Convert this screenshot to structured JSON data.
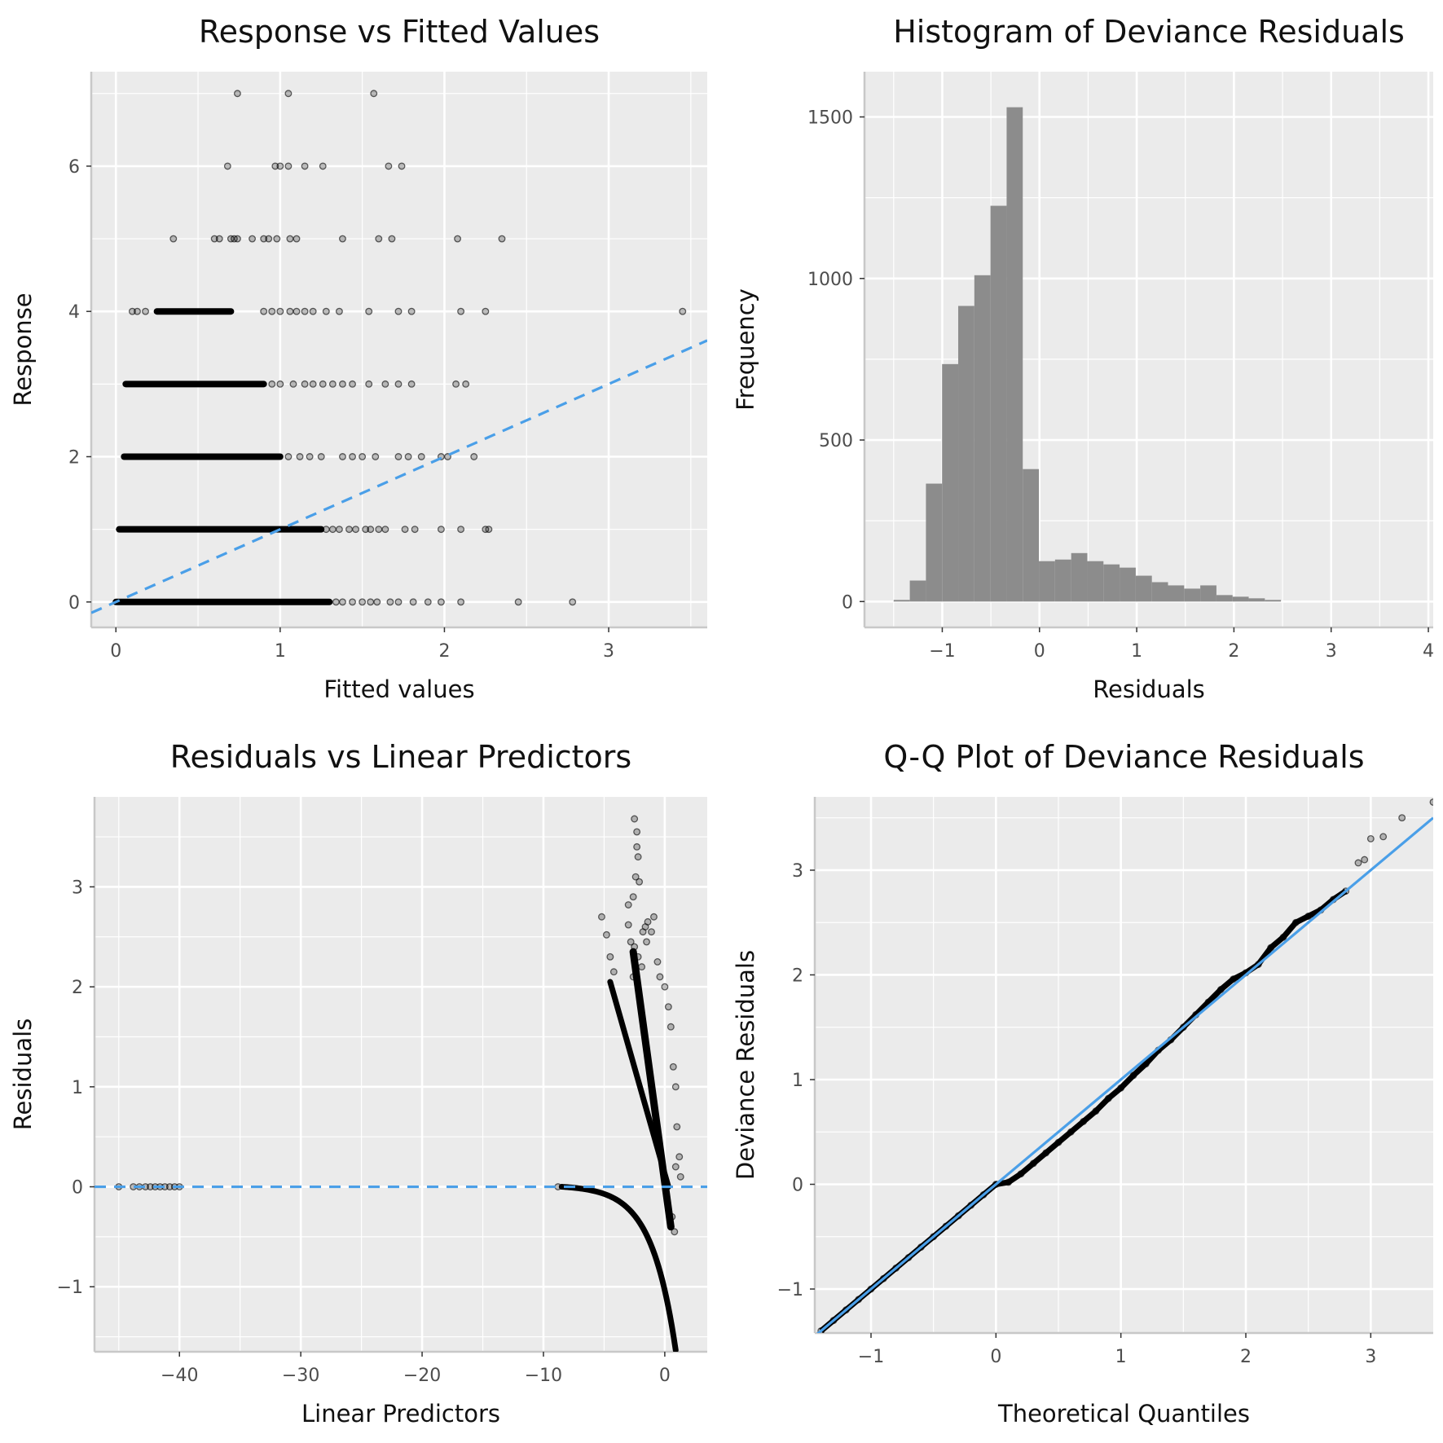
{
  "colors": {
    "panel_bg": "#ebebeb",
    "grid": "#ffffff",
    "axis": "#c8c8c8",
    "point": "#000000",
    "bar": "#8c8c8c",
    "ref_line": "#4a9fe8"
  },
  "chart_data": [
    {
      "type": "scatter",
      "title": "Response vs Fitted Values",
      "xlabel": "Fitted values",
      "ylabel": "Response",
      "xlim": [
        -0.15,
        3.6
      ],
      "ylim": [
        -0.35,
        7.3
      ],
      "xticks": [
        0,
        1,
        2,
        3
      ],
      "yticks": [
        0,
        2,
        4,
        6
      ],
      "grid": true,
      "reference_line": {
        "type": "identity",
        "style": "dashed"
      },
      "bands": [
        {
          "y": 0,
          "x_from": 0.0,
          "x_to": 1.3
        },
        {
          "y": 1,
          "x_from": 0.02,
          "x_to": 1.25
        },
        {
          "y": 2,
          "x_from": 0.05,
          "x_to": 1.0
        },
        {
          "y": 3,
          "x_from": 0.06,
          "x_to": 0.9
        },
        {
          "y": 4,
          "x_from": 0.25,
          "x_to": 0.7
        }
      ],
      "points": [
        [
          0.74,
          7
        ],
        [
          1.05,
          7
        ],
        [
          1.57,
          7
        ],
        [
          0.68,
          6
        ],
        [
          0.97,
          6
        ],
        [
          1.0,
          6
        ],
        [
          1.05,
          6
        ],
        [
          1.15,
          6
        ],
        [
          1.26,
          6
        ],
        [
          1.66,
          6
        ],
        [
          1.74,
          6
        ],
        [
          0.35,
          5
        ],
        [
          0.6,
          5
        ],
        [
          0.63,
          5
        ],
        [
          0.7,
          5
        ],
        [
          0.72,
          5
        ],
        [
          0.74,
          5
        ],
        [
          0.83,
          5
        ],
        [
          0.9,
          5
        ],
        [
          0.93,
          5
        ],
        [
          0.98,
          5
        ],
        [
          1.06,
          5
        ],
        [
          1.1,
          5
        ],
        [
          1.38,
          5
        ],
        [
          1.6,
          5
        ],
        [
          1.68,
          5
        ],
        [
          2.08,
          5
        ],
        [
          2.35,
          5
        ],
        [
          0.1,
          4
        ],
        [
          0.13,
          4
        ],
        [
          0.18,
          4
        ],
        [
          0.9,
          4
        ],
        [
          0.95,
          4
        ],
        [
          1.0,
          4
        ],
        [
          1.06,
          4
        ],
        [
          1.1,
          4
        ],
        [
          1.15,
          4
        ],
        [
          1.2,
          4
        ],
        [
          1.28,
          4
        ],
        [
          1.36,
          4
        ],
        [
          1.54,
          4
        ],
        [
          1.72,
          4
        ],
        [
          1.8,
          4
        ],
        [
          2.1,
          4
        ],
        [
          2.25,
          4
        ],
        [
          3.45,
          4
        ],
        [
          0.95,
          3
        ],
        [
          1.0,
          3
        ],
        [
          1.08,
          3
        ],
        [
          1.15,
          3
        ],
        [
          1.2,
          3
        ],
        [
          1.26,
          3
        ],
        [
          1.32,
          3
        ],
        [
          1.38,
          3
        ],
        [
          1.44,
          3
        ],
        [
          1.54,
          3
        ],
        [
          1.64,
          3
        ],
        [
          1.72,
          3
        ],
        [
          1.8,
          3
        ],
        [
          2.07,
          3
        ],
        [
          2.13,
          3
        ],
        [
          1.05,
          2
        ],
        [
          1.12,
          2
        ],
        [
          1.18,
          2
        ],
        [
          1.25,
          2
        ],
        [
          1.38,
          2
        ],
        [
          1.44,
          2
        ],
        [
          1.5,
          2
        ],
        [
          1.58,
          2
        ],
        [
          1.72,
          2
        ],
        [
          1.78,
          2
        ],
        [
          1.86,
          2
        ],
        [
          1.98,
          2
        ],
        [
          2.02,
          2
        ],
        [
          2.18,
          2
        ],
        [
          1.28,
          1
        ],
        [
          1.32,
          1
        ],
        [
          1.36,
          1
        ],
        [
          1.42,
          1
        ],
        [
          1.46,
          1
        ],
        [
          1.52,
          1
        ],
        [
          1.55,
          1
        ],
        [
          1.6,
          1
        ],
        [
          1.64,
          1
        ],
        [
          1.76,
          1
        ],
        [
          1.82,
          1
        ],
        [
          1.98,
          1
        ],
        [
          2.1,
          1
        ],
        [
          2.25,
          1
        ],
        [
          2.27,
          1
        ],
        [
          1.34,
          0
        ],
        [
          1.38,
          0
        ],
        [
          1.44,
          0
        ],
        [
          1.5,
          0
        ],
        [
          1.55,
          0
        ],
        [
          1.59,
          0
        ],
        [
          1.67,
          0
        ],
        [
          1.72,
          0
        ],
        [
          1.81,
          0
        ],
        [
          1.9,
          0
        ],
        [
          1.98,
          0
        ],
        [
          2.1,
          0
        ],
        [
          2.45,
          0
        ],
        [
          2.78,
          0
        ]
      ]
    },
    {
      "type": "bar",
      "title": "Histogram of Deviance Residuals",
      "xlabel": "Residuals",
      "ylabel": "Frequency",
      "xlim": [
        -1.8,
        4.05
      ],
      "ylim": [
        -80,
        1640
      ],
      "xticks": [
        -1,
        0,
        1,
        2,
        3,
        4
      ],
      "yticks": [
        0,
        500,
        1000,
        1500
      ],
      "grid": true,
      "bin_width": 0.166,
      "bin_start": -1.5,
      "values": [
        5,
        65,
        365,
        735,
        915,
        1010,
        1225,
        1530,
        410,
        125,
        130,
        150,
        125,
        115,
        105,
        80,
        60,
        50,
        40,
        50,
        20,
        15,
        10,
        5
      ]
    },
    {
      "type": "scatter",
      "title": "Residuals vs Linear Predictors",
      "xlabel": "Linear Predictors",
      "ylabel": "Residuals",
      "xlim": [
        -47,
        3.5
      ],
      "ylim": [
        -1.65,
        3.9
      ],
      "xticks": [
        -40,
        -30,
        -20,
        -10,
        0
      ],
      "yticks": [
        -1,
        0,
        1,
        2,
        3
      ],
      "grid": true,
      "reference_line": {
        "type": "hline",
        "y": 0,
        "style": "dashed"
      },
      "curves": [
        {
          "kind": "exp",
          "x_from": -8.5,
          "x_to": 0.9
        },
        {
          "kind": "linear",
          "from": [
            -4.5,
            2.05
          ],
          "to": [
            0.3,
            0.0
          ]
        }
      ],
      "points": [
        [
          -45,
          0
        ],
        [
          -43.8,
          0
        ],
        [
          -43.3,
          0
        ],
        [
          -42.8,
          0
        ],
        [
          -42.4,
          0
        ],
        [
          -42,
          0
        ],
        [
          -41.6,
          0
        ],
        [
          -41.2,
          0
        ],
        [
          -40.8,
          0
        ],
        [
          -40.4,
          0
        ],
        [
          -40,
          0
        ],
        [
          -8.8,
          0
        ],
        [
          -2.5,
          3.68
        ],
        [
          -2.3,
          3.55
        ],
        [
          -2.3,
          3.4
        ],
        [
          -2.2,
          3.3
        ],
        [
          -2.4,
          3.1
        ],
        [
          -2.1,
          3.05
        ],
        [
          -3.0,
          2.82
        ],
        [
          -2.6,
          2.9
        ],
        [
          -5.2,
          2.7
        ],
        [
          -4.8,
          2.52
        ],
        [
          -4.5,
          2.3
        ],
        [
          -4.2,
          2.15
        ],
        [
          -3.0,
          2.62
        ],
        [
          -2.8,
          2.45
        ],
        [
          -2.5,
          2.4
        ],
        [
          -2.2,
          2.3
        ],
        [
          -1.8,
          2.55
        ],
        [
          -1.6,
          2.6
        ],
        [
          -1.4,
          2.65
        ],
        [
          -1.1,
          2.55
        ],
        [
          -0.9,
          2.7
        ],
        [
          -1.5,
          2.45
        ],
        [
          -1.9,
          2.2
        ],
        [
          -2.6,
          2.1
        ],
        [
          -0.6,
          2.25
        ],
        [
          -0.4,
          2.1
        ],
        [
          0.0,
          2.0
        ],
        [
          0.3,
          1.8
        ],
        [
          0.5,
          1.6
        ],
        [
          0.7,
          1.2
        ],
        [
          0.9,
          1.0
        ],
        [
          1.0,
          0.6
        ],
        [
          1.2,
          0.3
        ],
        [
          1.3,
          0.1
        ],
        [
          0.9,
          0.2
        ],
        [
          0.6,
          -0.3
        ],
        [
          0.8,
          -0.45
        ]
      ],
      "thick_band": {
        "from": [
          -2.6,
          2.35
        ],
        "to": [
          0.5,
          -0.4
        ]
      }
    },
    {
      "type": "scatter",
      "title": "Q-Q Plot of Deviance Residuals",
      "xlabel": "Theoretical Quantiles",
      "ylabel": "Deviance Residuals",
      "xlim": [
        -1.45,
        3.5
      ],
      "ylim": [
        -1.42,
        3.7
      ],
      "xticks": [
        -1,
        0,
        1,
        2,
        3
      ],
      "yticks": [
        -1,
        0,
        1,
        2,
        3
      ],
      "grid": true,
      "reference_line": {
        "type": "identity",
        "style": "solid"
      },
      "points": [
        [
          -1.4,
          -1.4
        ],
        [
          -1.3,
          -1.3
        ],
        [
          -1.2,
          -1.2
        ],
        [
          -1.1,
          -1.1
        ],
        [
          -1.0,
          -1.0
        ],
        [
          -0.9,
          -0.9
        ],
        [
          -0.8,
          -0.8
        ],
        [
          -0.7,
          -0.7
        ],
        [
          -0.6,
          -0.6
        ],
        [
          -0.5,
          -0.5
        ],
        [
          -0.4,
          -0.4
        ],
        [
          -0.3,
          -0.3
        ],
        [
          -0.2,
          -0.2
        ],
        [
          -0.1,
          -0.1
        ],
        [
          0.0,
          0.0
        ],
        [
          0.1,
          0.02
        ],
        [
          0.2,
          0.1
        ],
        [
          0.3,
          0.2
        ],
        [
          0.4,
          0.3
        ],
        [
          0.5,
          0.4
        ],
        [
          0.6,
          0.5
        ],
        [
          0.7,
          0.6
        ],
        [
          0.8,
          0.7
        ],
        [
          0.9,
          0.82
        ],
        [
          1.0,
          0.92
        ],
        [
          1.1,
          1.04
        ],
        [
          1.2,
          1.15
        ],
        [
          1.3,
          1.28
        ],
        [
          1.4,
          1.38
        ],
        [
          1.5,
          1.5
        ],
        [
          1.6,
          1.62
        ],
        [
          1.7,
          1.74
        ],
        [
          1.8,
          1.86
        ],
        [
          1.9,
          1.96
        ],
        [
          2.0,
          2.02
        ],
        [
          2.1,
          2.1
        ],
        [
          2.2,
          2.26
        ],
        [
          2.3,
          2.36
        ],
        [
          2.4,
          2.5
        ],
        [
          2.5,
          2.56
        ],
        [
          2.6,
          2.62
        ],
        [
          2.7,
          2.72
        ],
        [
          2.8,
          2.8
        ],
        [
          2.9,
          3.07
        ],
        [
          2.95,
          3.1
        ],
        [
          3.0,
          3.3
        ],
        [
          3.1,
          3.32
        ],
        [
          3.25,
          3.5
        ],
        [
          3.5,
          3.65
        ]
      ]
    }
  ]
}
